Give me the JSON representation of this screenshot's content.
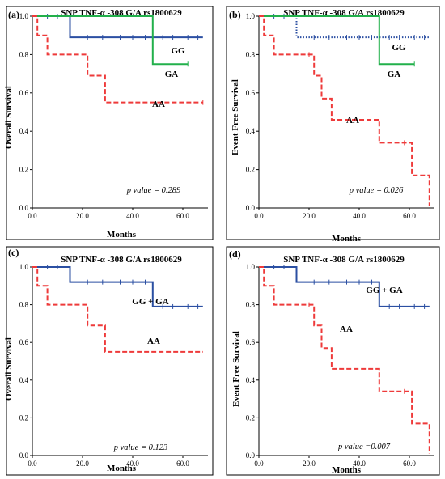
{
  "chart_data": [
    {
      "panel_label": "(a)",
      "type": "line",
      "step": true,
      "title": "SNP TNF-α -308 G/A rs1800629",
      "xlabel": "Months",
      "ylabel": "Overall Survival",
      "xlim": [
        0,
        70
      ],
      "ylim": [
        0,
        1
      ],
      "xticks": [
        "0.0",
        "20.0",
        "40.0",
        "60.0"
      ],
      "yticks": [
        "0.0",
        "0.2",
        "0.4",
        "0.6",
        "0.8",
        "1.0"
      ],
      "annotation": "p value = 0.289",
      "series": [
        {
          "name": "GG",
          "color": "#2b4fa2",
          "dash": "solid",
          "x": [
            0,
            15,
            68
          ],
          "y": [
            1.0,
            0.89,
            0.89
          ],
          "censor_x": [
            6,
            10,
            22,
            28,
            35,
            40,
            45,
            52,
            56,
            62,
            66
          ]
        },
        {
          "name": "GA",
          "color": "#22b04b",
          "dash": "solid",
          "x": [
            0,
            48,
            62
          ],
          "y": [
            1.0,
            0.75,
            0.75
          ],
          "censor_x": [
            62
          ]
        },
        {
          "name": "AA",
          "color": "#ee3a3a",
          "dash": "dashed",
          "x": [
            0,
            2,
            6,
            16,
            22,
            29,
            68
          ],
          "y": [
            1.0,
            0.9,
            0.8,
            0.8,
            0.69,
            0.55,
            0.55
          ],
          "censor_x": [
            68
          ]
        }
      ]
    },
    {
      "panel_label": "(b)",
      "type": "line",
      "step": true,
      "title": "SNP TNF-α -308 G/A rs1800629",
      "xlabel": "Months",
      "ylabel": "Event Free Survival",
      "xlim": [
        0,
        70
      ],
      "ylim": [
        0,
        1
      ],
      "xticks": [
        "0.0",
        "20.0",
        "40.0",
        "60.0"
      ],
      "yticks": [
        "0.0",
        "0.2",
        "0.4",
        "0.6",
        "0.8",
        "1.0"
      ],
      "annotation": "p value = 0.026",
      "series": [
        {
          "name": "GG",
          "color": "#2b4fa2",
          "dash": "dotted",
          "x": [
            0,
            15,
            68
          ],
          "y": [
            1.0,
            0.89,
            0.89
          ],
          "censor_x": [
            6,
            10,
            22,
            28,
            35,
            40,
            45,
            52,
            56,
            62,
            66
          ]
        },
        {
          "name": "GA",
          "color": "#22b04b",
          "dash": "solid",
          "x": [
            0,
            48,
            62
          ],
          "y": [
            1.0,
            0.75,
            0.75
          ],
          "censor_x": [
            62
          ]
        },
        {
          "name": "AA",
          "color": "#ee3a3a",
          "dash": "dashed",
          "x": [
            0,
            2,
            6,
            17,
            22,
            25,
            29,
            48,
            54,
            61,
            68
          ],
          "y": [
            1.0,
            0.9,
            0.8,
            0.8,
            0.69,
            0.57,
            0.46,
            0.34,
            0.34,
            0.17,
            0.01
          ],
          "censor_x": [
            20,
            58
          ]
        }
      ]
    },
    {
      "panel_label": "(c)",
      "type": "line",
      "step": true,
      "title": "SNP TNF-α -308 G/A rs1800629",
      "xlabel": "Months",
      "ylabel": "Overall Survival",
      "xlim": [
        0,
        70
      ],
      "ylim": [
        0,
        1
      ],
      "xticks": [
        "0.0",
        "20.0",
        "40.0",
        "60.0"
      ],
      "yticks": [
        "0.0",
        "0.2",
        "0.4",
        "0.6",
        "0.8",
        "1.0"
      ],
      "annotation": "p  value = 0.123",
      "series": [
        {
          "name": "GG + GA",
          "color": "#2b4fa2",
          "dash": "solid",
          "x": [
            0,
            15,
            48,
            68
          ],
          "y": [
            1.0,
            0.92,
            0.79,
            0.79
          ],
          "censor_x": [
            6,
            10,
            22,
            28,
            35,
            40,
            45,
            52,
            56,
            62,
            66
          ]
        },
        {
          "name": "AA",
          "color": "#ee3a3a",
          "dash": "dashed",
          "x": [
            0,
            2,
            6,
            16,
            22,
            29,
            68
          ],
          "y": [
            1.0,
            0.9,
            0.8,
            0.8,
            0.69,
            0.55,
            0.55
          ],
          "censor_x": []
        }
      ]
    },
    {
      "panel_label": "(d)",
      "type": "line",
      "step": true,
      "title": "SNP TNF-α -308 G/A rs1800629",
      "xlabel": "Months",
      "ylabel": "Event Free Survival",
      "xlim": [
        0,
        70
      ],
      "ylim": [
        0,
        1
      ],
      "xticks": [
        "0.0",
        "20.0",
        "40.0",
        "60.0"
      ],
      "yticks": [
        "0.0",
        "0.2",
        "0.4",
        "0.6",
        "0.8",
        "1.0"
      ],
      "annotation": "p  value =0.007",
      "series": [
        {
          "name": "GG + GA",
          "color": "#2b4fa2",
          "dash": "solid",
          "x": [
            0,
            15,
            48,
            68
          ],
          "y": [
            1.0,
            0.92,
            0.79,
            0.79
          ],
          "censor_x": [
            6,
            10,
            22,
            28,
            35,
            40,
            45,
            52,
            56,
            62,
            66
          ]
        },
        {
          "name": "AA",
          "color": "#ee3a3a",
          "dash": "dashed",
          "x": [
            0,
            2,
            6,
            17,
            22,
            25,
            29,
            48,
            54,
            61,
            68
          ],
          "y": [
            1.0,
            0.9,
            0.8,
            0.8,
            0.69,
            0.57,
            0.46,
            0.34,
            0.34,
            0.17,
            0.01
          ],
          "censor_x": [
            20,
            58
          ]
        }
      ]
    }
  ]
}
